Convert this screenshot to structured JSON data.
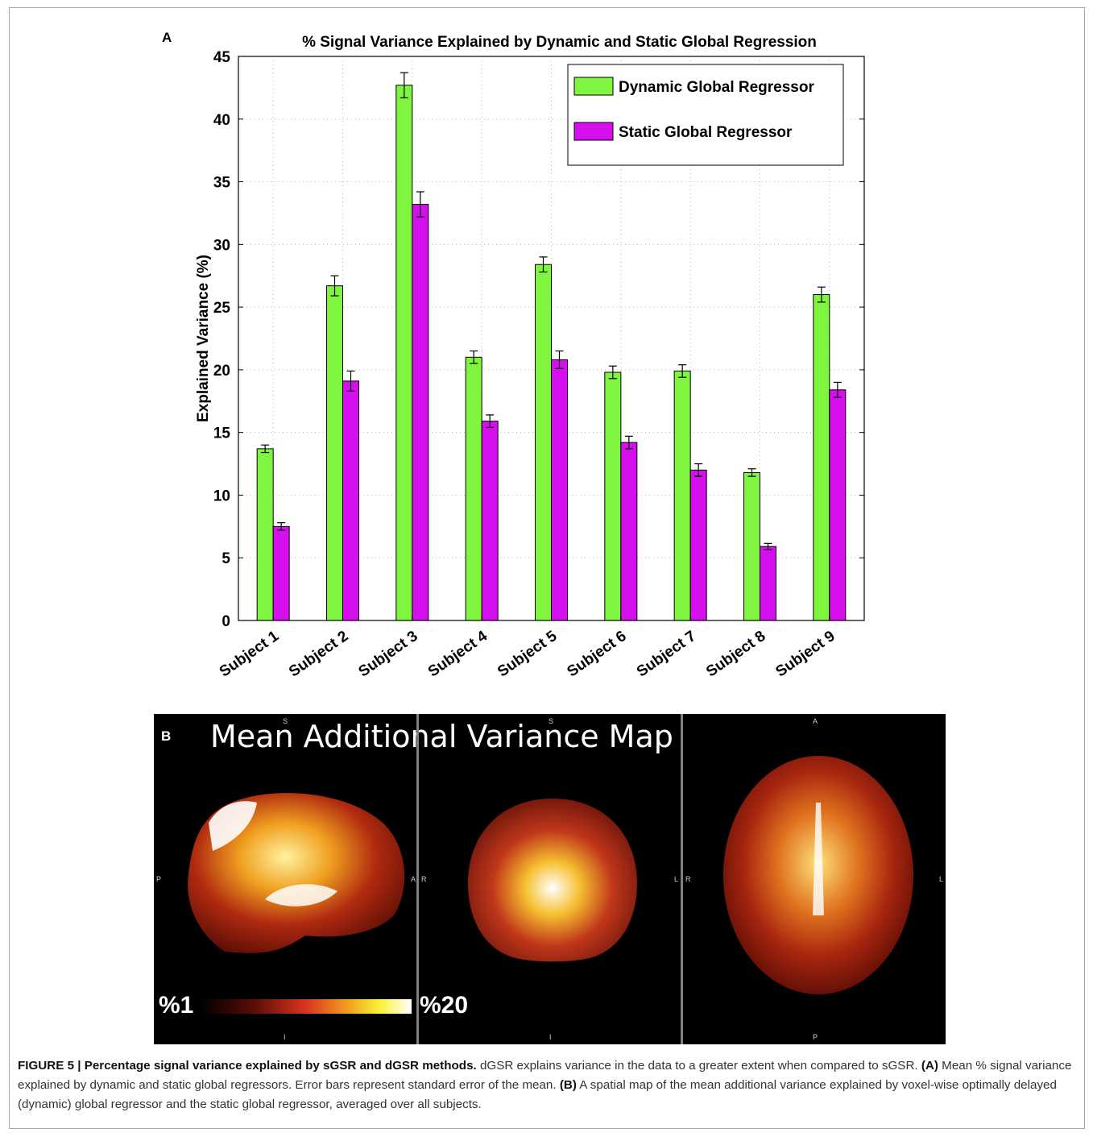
{
  "chart_data": {
    "type": "bar",
    "title": "% Signal Variance Explained by Dynamic and Static Global Regression",
    "ylabel": "Explained Variance (%)",
    "xlabel": "",
    "ylim": [
      0,
      45
    ],
    "yticks": [
      0,
      5,
      10,
      15,
      20,
      25,
      30,
      35,
      40,
      45
    ],
    "grid": true,
    "legend_position": "top-right",
    "categories": [
      "Subject 1",
      "Subject 2",
      "Subject 3",
      "Subject 4",
      "Subject 5",
      "Subject 6",
      "Subject 7",
      "Subject 8",
      "Subject 9"
    ],
    "series": [
      {
        "name": "Dynamic Global Regressor",
        "color": "#7ff53f",
        "values": [
          13.7,
          26.7,
          42.7,
          21.0,
          28.4,
          19.8,
          19.9,
          11.8,
          26.0
        ],
        "errors": [
          0.3,
          0.8,
          1.0,
          0.5,
          0.6,
          0.5,
          0.5,
          0.3,
          0.6
        ]
      },
      {
        "name": "Static Global Regressor",
        "color": "#d60fef",
        "values": [
          7.5,
          19.1,
          33.2,
          15.9,
          20.8,
          14.2,
          12.0,
          5.9,
          18.4
        ],
        "errors": [
          0.3,
          0.8,
          1.0,
          0.5,
          0.7,
          0.5,
          0.5,
          0.25,
          0.6
        ]
      }
    ]
  },
  "panel_a_label": "A",
  "panel_b": {
    "label": "B",
    "title": "Mean Additional Variance Map",
    "colorbar_min": "%1",
    "colorbar_max": "%20",
    "slices": [
      {
        "top": "S",
        "left": "P",
        "right": "A",
        "bottom": "I"
      },
      {
        "top": "S",
        "left": "R",
        "right": "L",
        "bottom": "I"
      },
      {
        "top": "A",
        "left": "R",
        "right": "L",
        "bottom": "P"
      }
    ]
  },
  "caption": {
    "title": "FIGURE 5 | Percentage signal variance explained by sGSR and dGSR methods.",
    "text1": " dGSR explains variance in the data to a greater extent when compared to sGSR. ",
    "a_label": "(A)",
    "text2": " Mean % signal variance explained by dynamic and static global regressors. Error bars represent standard error of the mean. ",
    "b_label": "(B)",
    "text3": " A spatial map of the mean additional variance explained by voxel-wise optimally delayed (dynamic) global regressor and the static global regressor, averaged over all subjects."
  }
}
